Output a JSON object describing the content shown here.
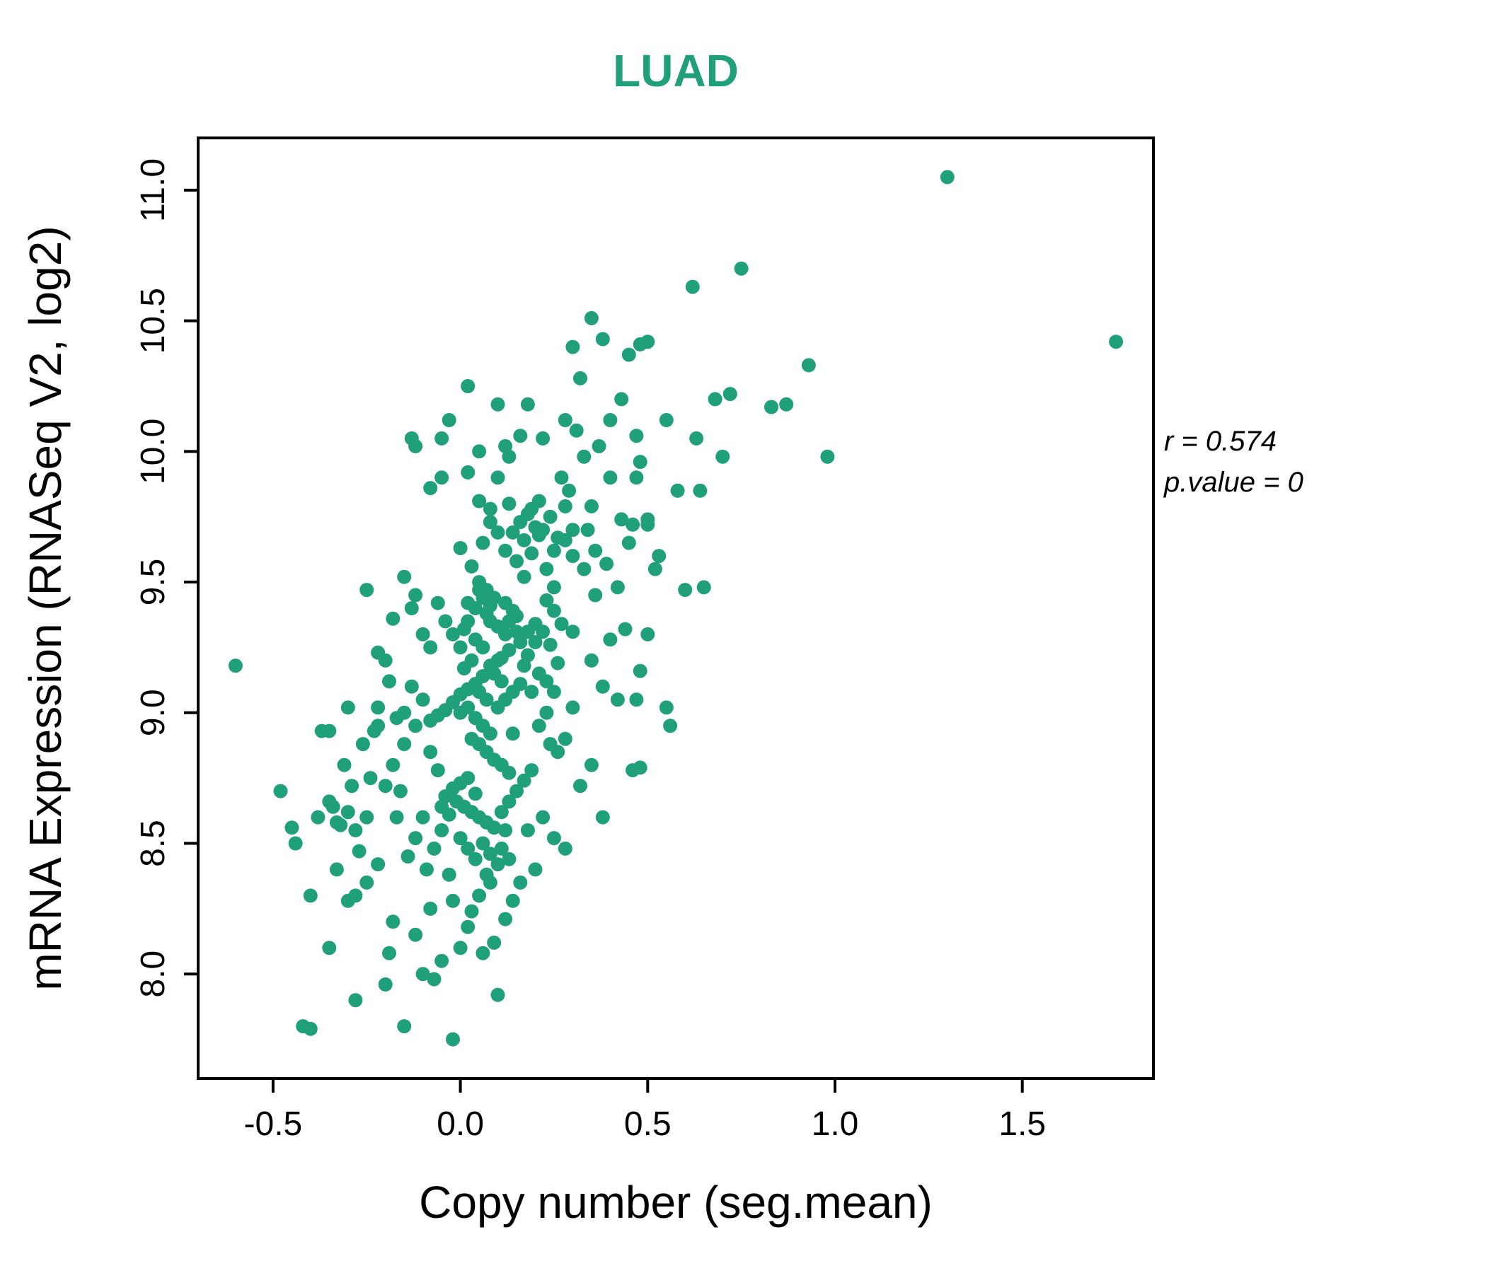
{
  "chart_data": {
    "type": "scatter",
    "title": "LUAD",
    "xlabel": "Copy number (seg.mean)",
    "ylabel": "mRNA Expression (RNASeq V2, log2)",
    "xlim": [
      -0.7,
      1.85
    ],
    "ylim": [
      7.6,
      11.2
    ],
    "grid": false,
    "legend": "none",
    "title_color": "#1fa07a",
    "point_color": "#1fa07a",
    "frame_color": "#000000",
    "annotation": {
      "line1": "r = 0.574",
      "line2": "p.value = 0"
    },
    "ticks": {
      "x": {
        "values": [
          -0.5,
          0.0,
          0.5,
          1.0,
          1.5
        ],
        "labels": [
          "-0.5",
          "0.0",
          "0.5",
          "1.0",
          "1.5"
        ]
      },
      "y": {
        "values": [
          8.0,
          8.5,
          9.0,
          9.5,
          10.0,
          10.5,
          11.0
        ],
        "labels": [
          "8.0",
          "8.5",
          "9.0",
          "9.5",
          "10.0",
          "10.5",
          "11.0"
        ]
      }
    },
    "points": [
      [
        -0.6,
        9.18
      ],
      [
        1.3,
        11.05
      ],
      [
        1.75,
        10.42
      ],
      [
        0.75,
        10.7
      ],
      [
        0.62,
        10.63
      ],
      [
        0.93,
        10.33
      ],
      [
        0.87,
        10.18
      ],
      [
        0.98,
        9.98
      ],
      [
        0.83,
        10.17
      ],
      [
        0.68,
        10.2
      ],
      [
        0.35,
        10.51
      ],
      [
        0.3,
        10.4
      ],
      [
        0.38,
        10.43
      ],
      [
        0.45,
        10.37
      ],
      [
        0.48,
        10.41
      ],
      [
        0.32,
        10.28
      ],
      [
        0.4,
        10.12
      ],
      [
        0.47,
        10.06
      ],
      [
        0.5,
        10.42
      ],
      [
        0.63,
        10.05
      ],
      [
        0.55,
        10.12
      ],
      [
        0.48,
        9.96
      ],
      [
        0.47,
        9.9
      ],
      [
        0.46,
        9.72
      ],
      [
        0.43,
        9.74
      ],
      [
        0.5,
        9.72
      ],
      [
        0.35,
        9.79
      ],
      [
        0.3,
        9.7
      ],
      [
        0.28,
        9.66
      ],
      [
        0.25,
        9.62
      ],
      [
        0.02,
        10.25
      ],
      [
        0.1,
        10.18
      ],
      [
        0.16,
        10.06
      ],
      [
        0.12,
        10.02
      ],
      [
        -0.05,
        10.05
      ],
      [
        -0.08,
        9.86
      ],
      [
        0.05,
        9.81
      ],
      [
        0.08,
        9.78
      ],
      [
        0.1,
        9.9
      ],
      [
        0.13,
        9.8
      ],
      [
        -0.12,
        10.02
      ],
      [
        -0.03,
        10.12
      ],
      [
        0.0,
        9.63
      ],
      [
        0.03,
        9.56
      ],
      [
        0.05,
        9.5
      ],
      [
        0.07,
        9.47
      ],
      [
        0.09,
        9.44
      ],
      [
        0.12,
        9.42
      ],
      [
        0.14,
        9.39
      ],
      [
        0.15,
        9.37
      ],
      [
        0.17,
        9.52
      ],
      [
        0.19,
        9.61
      ],
      [
        0.21,
        9.68
      ],
      [
        0.23,
        9.55
      ],
      [
        0.25,
        9.48
      ],
      [
        0.2,
        9.34
      ],
      [
        0.18,
        9.31
      ],
      [
        0.16,
        9.27
      ],
      [
        0.13,
        9.24
      ],
      [
        0.11,
        9.21
      ],
      [
        0.12,
        9.62
      ],
      [
        0.14,
        9.69
      ],
      [
        0.16,
        9.73
      ],
      [
        0.18,
        9.76
      ],
      [
        0.2,
        9.71
      ],
      [
        0.22,
        9.7
      ],
      [
        0.24,
        9.75
      ],
      [
        0.26,
        9.67
      ],
      [
        0.15,
        9.58
      ],
      [
        0.17,
        9.66
      ],
      [
        0.19,
        9.78
      ],
      [
        0.21,
        9.81
      ],
      [
        0.1,
        9.69
      ],
      [
        0.08,
        9.73
      ],
      [
        0.06,
        9.65
      ],
      [
        0.28,
        9.79
      ],
      [
        0.3,
        9.31
      ],
      [
        0.23,
        9.43
      ],
      [
        0.25,
        9.39
      ],
      [
        0.27,
        9.34
      ],
      [
        0.05,
        9.47
      ],
      [
        0.07,
        9.38
      ],
      [
        0.02,
        9.35
      ],
      [
        0.1,
        9.33
      ],
      [
        0.12,
        9.3
      ],
      [
        0.04,
        9.28
      ],
      [
        0.06,
        9.25
      ],
      [
        0.08,
        9.41
      ],
      [
        0.03,
        9.2
      ],
      [
        0.01,
        9.17
      ],
      [
        0.09,
        9.15
      ],
      [
        0.11,
        9.12
      ],
      [
        0.13,
        9.35
      ],
      [
        0.15,
        9.31
      ],
      [
        0.05,
        9.08
      ],
      [
        0.07,
        9.05
      ],
      [
        0.02,
        9.02
      ],
      [
        0.0,
        9.0
      ],
      [
        0.04,
        8.98
      ],
      [
        0.06,
        8.95
      ],
      [
        0.08,
        8.92
      ],
      [
        0.1,
        9.02
      ],
      [
        0.12,
        9.05
      ],
      [
        0.14,
        9.08
      ],
      [
        0.16,
        9.11
      ],
      [
        0.18,
        9.22
      ],
      [
        0.2,
        9.27
      ],
      [
        0.22,
        9.31
      ],
      [
        0.24,
        9.26
      ],
      [
        0.26,
        9.19
      ],
      [
        0.03,
        8.9
      ],
      [
        0.05,
        8.88
      ],
      [
        0.07,
        8.85
      ],
      [
        0.09,
        8.82
      ],
      [
        0.11,
        8.8
      ],
      [
        0.13,
        8.77
      ],
      [
        0.02,
        8.75
      ],
      [
        0.0,
        8.73
      ],
      [
        -0.02,
        8.71
      ],
      [
        0.04,
        8.69
      ],
      [
        0.1,
        9.2
      ],
      [
        0.08,
        9.18
      ],
      [
        0.06,
        9.14
      ],
      [
        0.04,
        9.11
      ],
      [
        0.02,
        9.09
      ],
      [
        0.0,
        9.07
      ],
      [
        -0.02,
        9.04
      ],
      [
        -0.04,
        9.01
      ],
      [
        -0.06,
        8.99
      ],
      [
        -0.08,
        8.97
      ],
      [
        -0.1,
        9.05
      ],
      [
        -0.12,
        8.95
      ],
      [
        -0.15,
        8.88
      ],
      [
        -0.18,
        8.8
      ],
      [
        -0.2,
        8.72
      ],
      [
        -0.22,
        8.95
      ],
      [
        -0.25,
        8.6
      ],
      [
        -0.28,
        8.55
      ],
      [
        -0.3,
        8.62
      ],
      [
        -0.33,
        8.58
      ],
      [
        -0.08,
        8.85
      ],
      [
        -0.06,
        8.78
      ],
      [
        -0.04,
        8.68
      ],
      [
        -0.1,
        8.6
      ],
      [
        -0.12,
        8.52
      ],
      [
        -0.14,
        8.45
      ],
      [
        -0.16,
        8.7
      ],
      [
        -0.05,
        8.55
      ],
      [
        -0.07,
        8.48
      ],
      [
        -0.09,
        8.4
      ],
      [
        -0.48,
        8.7
      ],
      [
        -0.45,
        8.56
      ],
      [
        -0.44,
        8.5
      ],
      [
        -0.38,
        8.6
      ],
      [
        -0.35,
        8.66
      ],
      [
        -0.33,
        8.4
      ],
      [
        -0.3,
        9.02
      ],
      [
        -0.27,
        8.47
      ],
      [
        -0.25,
        9.47
      ],
      [
        -0.22,
        9.02
      ],
      [
        -0.35,
        8.93
      ],
      [
        -0.23,
        8.93
      ],
      [
        -0.2,
        9.2
      ],
      [
        -0.22,
        9.23
      ],
      [
        -0.18,
        9.36
      ],
      [
        -0.15,
        9.52
      ],
      [
        -0.13,
        9.4
      ],
      [
        -0.12,
        9.45
      ],
      [
        -0.28,
        8.3
      ],
      [
        -0.32,
        8.57
      ],
      [
        -0.37,
        8.93
      ],
      [
        -0.4,
        8.3
      ],
      [
        -0.35,
        8.1
      ],
      [
        -0.22,
        8.42
      ],
      [
        -0.17,
        8.6
      ],
      [
        -0.24,
        8.75
      ],
      [
        -0.26,
        8.88
      ],
      [
        -0.29,
        8.72
      ],
      [
        -0.31,
        8.8
      ],
      [
        -0.34,
        8.64
      ],
      [
        -0.42,
        7.8
      ],
      [
        -0.4,
        7.79
      ],
      [
        -0.28,
        7.9
      ],
      [
        -0.15,
        7.8
      ],
      [
        -0.02,
        7.75
      ],
      [
        0.1,
        7.92
      ],
      [
        -0.2,
        7.96
      ],
      [
        -0.05,
        8.05
      ],
      [
        -0.1,
        8.0
      ],
      [
        0.0,
        8.1
      ],
      [
        -0.3,
        8.28
      ],
      [
        -0.25,
        8.35
      ],
      [
        -0.18,
        8.2
      ],
      [
        -0.12,
        8.15
      ],
      [
        -0.08,
        8.25
      ],
      [
        0.02,
        8.18
      ],
      [
        0.05,
        8.3
      ],
      [
        0.08,
        8.35
      ],
      [
        -0.03,
        8.38
      ],
      [
        0.12,
        8.21
      ],
      [
        0.06,
        8.08
      ],
      [
        0.09,
        8.12
      ],
      [
        -0.07,
        7.98
      ],
      [
        0.14,
        8.28
      ],
      [
        -0.19,
        8.08
      ],
      [
        -0.02,
        8.28
      ],
      [
        0.03,
        8.24
      ],
      [
        0.07,
        8.38
      ],
      [
        0.11,
        8.48
      ],
      [
        0.13,
        8.44
      ],
      [
        0.3,
        9.6
      ],
      [
        0.33,
        9.55
      ],
      [
        0.36,
        9.62
      ],
      [
        0.4,
        9.28
      ],
      [
        0.44,
        9.32
      ],
      [
        0.48,
        9.16
      ],
      [
        0.52,
        9.55
      ],
      [
        0.56,
        8.95
      ],
      [
        0.6,
        9.47
      ],
      [
        0.64,
        9.85
      ],
      [
        0.35,
        9.2
      ],
      [
        0.38,
        9.1
      ],
      [
        0.42,
        9.05
      ],
      [
        0.46,
        8.78
      ],
      [
        0.3,
        9.02
      ],
      [
        0.28,
        8.9
      ],
      [
        0.26,
        8.85
      ],
      [
        0.32,
        8.72
      ],
      [
        0.45,
        9.65
      ],
      [
        0.5,
        9.74
      ],
      [
        0.35,
        8.8
      ],
      [
        0.38,
        8.6
      ],
      [
        0.48,
        8.79
      ],
      [
        0.55,
        9.02
      ],
      [
        0.42,
        9.48
      ],
      [
        0.4,
        9.9
      ],
      [
        0.37,
        10.02
      ],
      [
        0.43,
        10.2
      ],
      [
        0.5,
        9.3
      ],
      [
        0.47,
        9.05
      ],
      [
        0.65,
        9.48
      ],
      [
        0.7,
        9.98
      ],
      [
        0.72,
        10.22
      ],
      [
        0.58,
        9.85
      ],
      [
        0.53,
        9.6
      ],
      [
        0.27,
        9.9
      ],
      [
        0.29,
        9.85
      ],
      [
        0.34,
        9.7
      ],
      [
        0.36,
        9.45
      ],
      [
        0.39,
        9.57
      ],
      [
        0.01,
        8.64
      ],
      [
        0.03,
        8.62
      ],
      [
        0.05,
        8.6
      ],
      [
        0.07,
        8.58
      ],
      [
        0.09,
        8.56
      ],
      [
        0.11,
        8.62
      ],
      [
        0.13,
        8.66
      ],
      [
        0.15,
        8.7
      ],
      [
        0.17,
        8.74
      ],
      [
        0.19,
        8.78
      ],
      [
        -0.01,
        8.66
      ],
      [
        -0.03,
        8.61
      ],
      [
        -0.05,
        8.64
      ],
      [
        0.0,
        8.52
      ],
      [
        0.02,
        8.48
      ],
      [
        0.04,
        8.44
      ],
      [
        0.06,
        8.5
      ],
      [
        0.08,
        8.46
      ],
      [
        0.1,
        8.42
      ],
      [
        0.12,
        8.55
      ],
      [
        0.22,
        8.6
      ],
      [
        0.25,
        8.52
      ],
      [
        0.28,
        8.48
      ],
      [
        0.2,
        8.4
      ],
      [
        0.16,
        8.35
      ],
      [
        0.18,
        8.55
      ],
      [
        0.14,
        8.92
      ],
      [
        0.21,
        8.95
      ],
      [
        0.23,
        9.0
      ],
      [
        0.24,
        8.88
      ],
      [
        0.02,
        9.42
      ],
      [
        0.04,
        9.4
      ],
      [
        0.06,
        9.44
      ],
      [
        0.08,
        9.35
      ],
      [
        -0.02,
        9.3
      ],
      [
        -0.04,
        9.35
      ],
      [
        -0.06,
        9.42
      ],
      [
        -0.08,
        9.25
      ],
      [
        -0.1,
        9.3
      ],
      [
        -0.13,
        9.1
      ],
      [
        -0.15,
        9.0
      ],
      [
        -0.17,
        8.98
      ],
      [
        -0.19,
        9.12
      ],
      [
        0.0,
        9.25
      ],
      [
        0.01,
        9.32
      ],
      [
        0.17,
        9.18
      ],
      [
        0.19,
        9.08
      ],
      [
        0.21,
        9.15
      ],
      [
        0.23,
        9.12
      ],
      [
        0.25,
        9.08
      ],
      [
        -0.13,
        10.05
      ],
      [
        0.05,
        10.0
      ],
      [
        0.13,
        9.98
      ],
      [
        0.18,
        10.18
      ],
      [
        0.22,
        10.05
      ],
      [
        0.02,
        9.92
      ],
      [
        -0.05,
        9.9
      ],
      [
        0.33,
        9.98
      ],
      [
        0.28,
        10.12
      ],
      [
        0.31,
        10.08
      ]
    ]
  }
}
